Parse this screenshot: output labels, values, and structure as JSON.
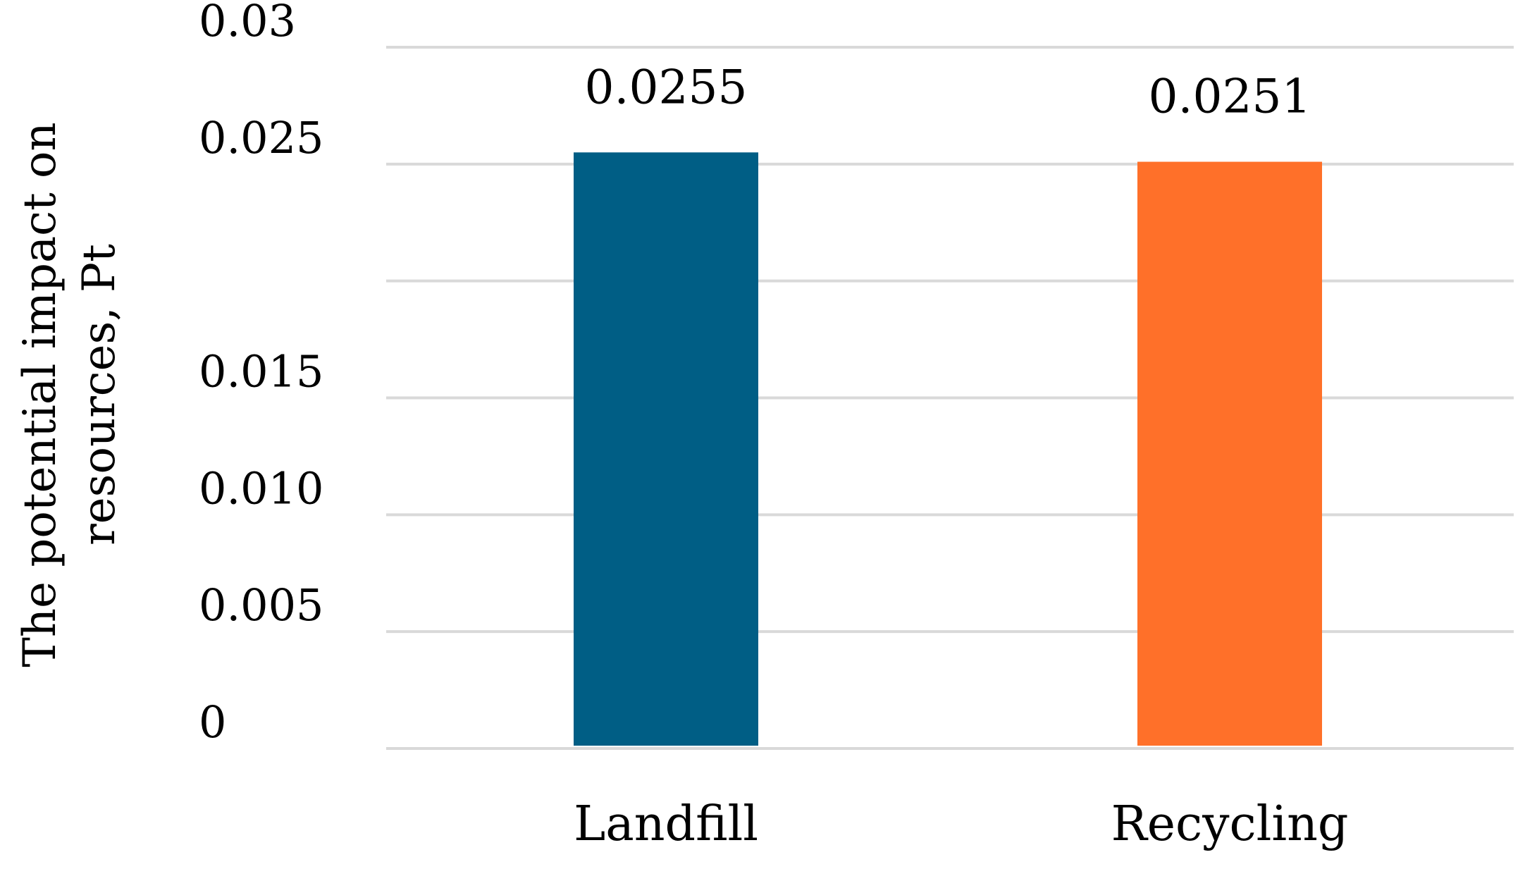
{
  "chart_data": {
    "type": "bar",
    "categories": [
      "Landfill",
      "Recycling"
    ],
    "values": [
      0.0255,
      0.0251
    ],
    "data_labels": [
      "0.0255",
      "0.0251"
    ],
    "colors": [
      "#005e85",
      "#ff7029"
    ],
    "title": "",
    "xlabel": "",
    "ylabel_lines": [
      "The potential impact on",
      "resources, Pt"
    ],
    "ylim": [
      0,
      0.03
    ],
    "yticks": [
      0,
      0.005,
      0.01,
      0.015,
      0.025,
      0.03
    ],
    "ytick_labels": [
      "0",
      "0.005",
      "0.010",
      "0.015",
      "0.025",
      "0.03"
    ],
    "grid": true,
    "legend": "none"
  }
}
